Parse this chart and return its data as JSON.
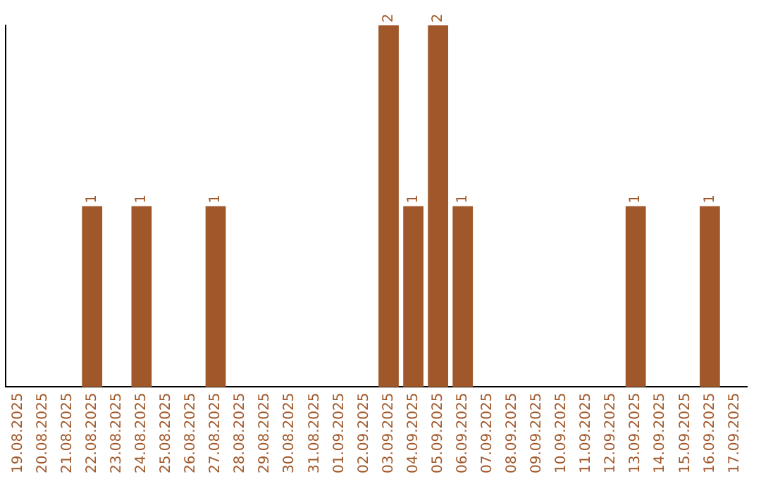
{
  "chart_data": {
    "type": "bar",
    "categories": [
      "19.08.2025",
      "20.08.2025",
      "21.08.2025",
      "22.08.2025",
      "23.08.2025",
      "24.08.2025",
      "25.08.2025",
      "26.08.2025",
      "27.08.2025",
      "28.08.2025",
      "29.08.2025",
      "30.08.2025",
      "31.08.2025",
      "01.09.2025",
      "02.09.2025",
      "03.09.2025",
      "04.09.2025",
      "05.09.2025",
      "06.09.2025",
      "07.09.2025",
      "08.09.2025",
      "09.09.2025",
      "10.09.2025",
      "11.09.2025",
      "12.09.2025",
      "13.09.2025",
      "14.09.2025",
      "15.09.2025",
      "16.09.2025",
      "17.09.2025"
    ],
    "values": [
      0,
      0,
      0,
      1,
      0,
      1,
      0,
      0,
      1,
      0,
      0,
      0,
      0,
      0,
      0,
      2,
      1,
      2,
      1,
      0,
      0,
      0,
      0,
      0,
      0,
      1,
      0,
      0,
      1,
      0
    ],
    "value_labels": [
      null,
      null,
      null,
      "1",
      null,
      "1",
      null,
      null,
      "1",
      null,
      null,
      null,
      null,
      null,
      null,
      "2",
      "1",
      "2",
      "1",
      null,
      null,
      null,
      null,
      null,
      null,
      "1",
      null,
      null,
      "1",
      null
    ],
    "color": "#a0582a",
    "grid": false,
    "legend": false
  }
}
